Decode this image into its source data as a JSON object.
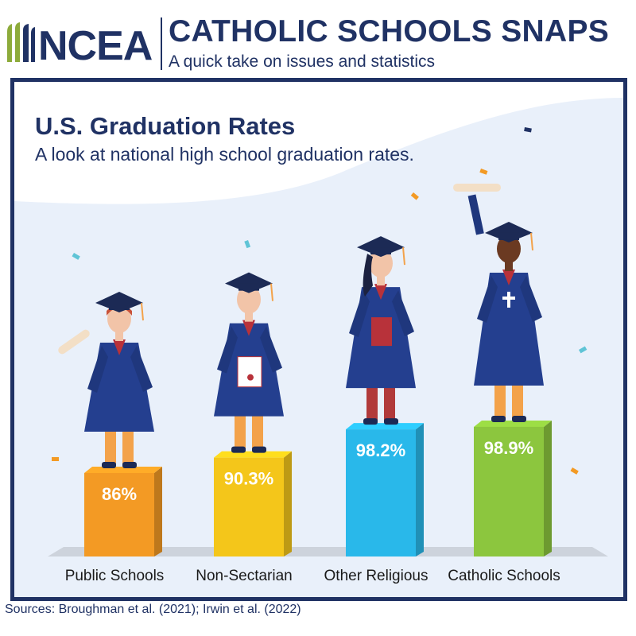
{
  "header": {
    "logo_text": "NCEA",
    "title": "CATHOLIC SCHOOLS SNAPS",
    "subtitle": "A quick take on issues and statistics"
  },
  "chart_data": {
    "type": "bar",
    "title": "U.S. Graduation Rates",
    "subtitle": "A look at national high school graduation rates.",
    "categories": [
      "Public Schools",
      "Non-Sectarian",
      "Other Religious",
      "Catholic Schools"
    ],
    "values": [
      86,
      90.3,
      98.2,
      98.9
    ],
    "value_labels": [
      "86%",
      "90.3%",
      "98.2%",
      "98.9%"
    ],
    "colors": [
      "#f39a24",
      "#f4c61a",
      "#29b8ea",
      "#8cc63e"
    ],
    "xlabel": "",
    "ylabel": "",
    "grid": false,
    "legend": "none"
  },
  "footer": {
    "sources": "Sources: Broughman et al. (2021); Irwin et al. (2022)"
  },
  "icons": [
    "ncea-logo-icon",
    "graduate-figure-icon",
    "diploma-scroll-icon",
    "confetti-icon"
  ]
}
